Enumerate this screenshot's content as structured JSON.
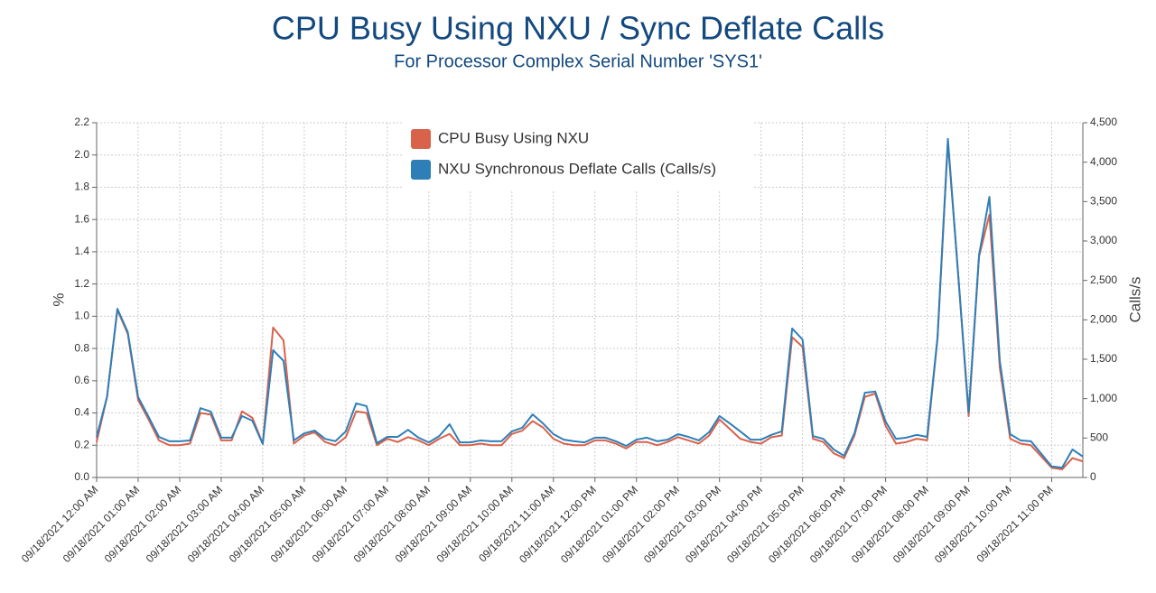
{
  "chart_data": {
    "type": "line",
    "title": "CPU Busy Using NXU / Sync Deflate Calls",
    "subtitle": "For Processor Complex Serial Number 'SYS1'",
    "ylabel": "%",
    "y2label": "Calls/s",
    "categories": [
      "09/18/2021 12:00 AM",
      null,
      null,
      null,
      "09/18/2021 01:00 AM",
      null,
      null,
      null,
      "09/18/2021 02:00 AM",
      null,
      null,
      null,
      "09/18/2021 03:00 AM",
      null,
      null,
      null,
      "09/18/2021 04:00 AM",
      null,
      null,
      null,
      "09/18/2021 05:00 AM",
      null,
      null,
      null,
      "09/18/2021 06:00 AM",
      null,
      null,
      null,
      "09/18/2021 07:00 AM",
      null,
      null,
      null,
      "09/18/2021 08:00 AM",
      null,
      null,
      null,
      "09/18/2021 09:00 AM",
      null,
      null,
      null,
      "09/18/2021 10:00 AM",
      null,
      null,
      null,
      "09/18/2021 11:00 AM",
      null,
      null,
      null,
      "09/18/2021 12:00 PM",
      null,
      null,
      null,
      "09/18/2021 01:00 PM",
      null,
      null,
      null,
      "09/18/2021 02:00 PM",
      null,
      null,
      null,
      "09/18/2021 03:00 PM",
      null,
      null,
      null,
      "09/18/2021 04:00 PM",
      null,
      null,
      null,
      "09/18/2021 05:00 PM",
      null,
      null,
      null,
      "09/18/2021 06:00 PM",
      null,
      null,
      null,
      "09/18/2021 07:00 PM",
      null,
      null,
      null,
      "09/18/2021 08:00 PM",
      null,
      null,
      null,
      "09/18/2021 09:00 PM",
      null,
      null,
      null,
      "09/18/2021 10:00 PM",
      null,
      null,
      null,
      "09/18/2021 11:00 PM",
      null,
      null,
      null
    ],
    "series": [
      {
        "name": "CPU Busy Using NXU",
        "color": "#d9624b",
        "axis": "y",
        "values": [
          0.22,
          0.5,
          1.04,
          0.89,
          0.48,
          0.36,
          0.23,
          0.2,
          0.2,
          0.21,
          0.4,
          0.39,
          0.23,
          0.23,
          0.41,
          0.37,
          0.21,
          0.93,
          0.85,
          0.21,
          0.26,
          0.28,
          0.22,
          0.2,
          0.25,
          0.41,
          0.4,
          0.2,
          0.24,
          0.22,
          0.25,
          0.23,
          0.2,
          0.24,
          0.27,
          0.2,
          0.2,
          0.21,
          0.2,
          0.2,
          0.27,
          0.29,
          0.35,
          0.31,
          0.24,
          0.21,
          0.2,
          0.2,
          0.23,
          0.23,
          0.21,
          0.18,
          0.22,
          0.22,
          0.2,
          0.22,
          0.25,
          0.23,
          0.21,
          0.26,
          0.36,
          0.3,
          0.24,
          0.22,
          0.21,
          0.25,
          0.26,
          0.87,
          0.81,
          0.24,
          0.22,
          0.15,
          0.12,
          0.26,
          0.5,
          0.52,
          0.32,
          0.21,
          0.22,
          0.24,
          0.23,
          0.86,
          2.08,
          1.25,
          0.38,
          1.37,
          1.63,
          0.68,
          0.24,
          0.21,
          0.2,
          0.13,
          0.06,
          0.05,
          0.12,
          0.1
        ]
      },
      {
        "name": "NXU Synchronous Deflate Calls (Calls/s)",
        "color": "#2e7fb8",
        "axis": "y2",
        "values": [
          515,
          1020,
          2140,
          1845,
          1020,
          770,
          515,
          460,
          460,
          470,
          880,
          835,
          505,
          505,
          780,
          720,
          425,
          1615,
          1480,
          470,
          560,
          595,
          490,
          460,
          585,
          940,
          905,
          435,
          515,
          515,
          605,
          505,
          445,
          525,
          675,
          445,
          445,
          470,
          460,
          460,
          585,
          630,
          800,
          685,
          550,
          480,
          460,
          445,
          505,
          505,
          460,
          400,
          480,
          505,
          460,
          480,
          550,
          515,
          470,
          575,
          780,
          685,
          585,
          480,
          480,
          540,
          585,
          1890,
          1750,
          525,
          490,
          355,
          275,
          560,
          1075,
          1090,
          710,
          490,
          505,
          540,
          515,
          1775,
          4295,
          2560,
          825,
          2820,
          3560,
          1480,
          550,
          470,
          460,
          300,
          140,
          125,
          355,
          265
        ]
      }
    ],
    "ylim": [
      0,
      2.2
    ],
    "yticks": [
      {
        "value": 0,
        "label": "0.0"
      },
      0.2,
      0.4,
      0.6,
      0.8,
      {
        "value": 1,
        "label": "1.0"
      },
      1.2,
      1.4,
      1.6,
      1.8,
      {
        "value": 2,
        "label": "2.0"
      },
      2.2
    ],
    "y2lim": [
      0,
      4500
    ],
    "y2ticks": [
      0,
      500,
      {
        "value": 1000,
        "label": "1,000"
      },
      {
        "value": 1500,
        "label": "1,500"
      },
      {
        "value": 2000,
        "label": "2,000"
      },
      {
        "value": 2500,
        "label": "2,500"
      },
      {
        "value": 3000,
        "label": "3,000"
      },
      {
        "value": 3500,
        "label": "3,500"
      },
      {
        "value": 4000,
        "label": "4,000"
      },
      {
        "value": 4500,
        "label": "4,500"
      }
    ],
    "grid": true,
    "legend": "top"
  }
}
